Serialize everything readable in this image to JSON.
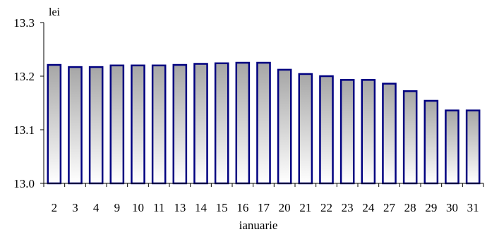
{
  "chart_data": {
    "type": "bar",
    "title": "",
    "ylabel": "lei",
    "xlabel": "ianuarie",
    "ylim": [
      13.0,
      13.3
    ],
    "yticks": [
      "13.0",
      "13.1",
      "13.2",
      "13.3"
    ],
    "categories": [
      "2",
      "3",
      "4",
      "9",
      "10",
      "11",
      "13",
      "14",
      "15",
      "16",
      "17",
      "20",
      "21",
      "22",
      "23",
      "24",
      "27",
      "28",
      "29",
      "30",
      "31"
    ],
    "values": [
      13.221,
      13.217,
      13.217,
      13.22,
      13.22,
      13.22,
      13.221,
      13.223,
      13.224,
      13.225,
      13.225,
      13.212,
      13.204,
      13.2,
      13.193,
      13.193,
      13.186,
      13.172,
      13.154,
      13.136,
      13.136
    ],
    "bar_stroke": "#000080",
    "bar_gradient": [
      "#a6a6a6",
      "#ffffff"
    ],
    "grid": false,
    "legend": "none"
  }
}
